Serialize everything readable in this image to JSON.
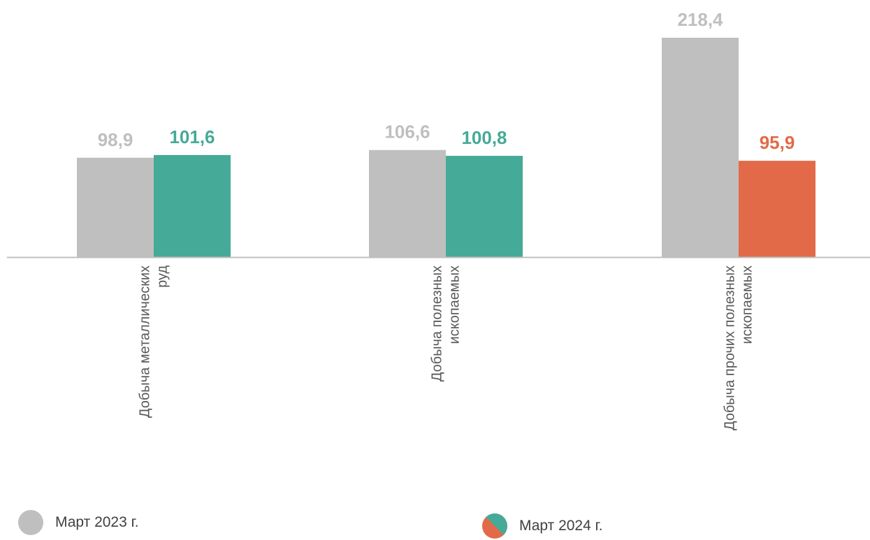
{
  "chart_data": {
    "type": "bar",
    "categories": [
      "Добыча металлических руд",
      "Добыча полезных ископаемых",
      "Добыча прочих полезных ископаемых"
    ],
    "category_label_lines": [
      [
        "Добыча металлических",
        "руд"
      ],
      [
        "Добыча полезных",
        "ископаемых"
      ],
      [
        "Добыча прочих полезных",
        "ископаемых"
      ]
    ],
    "series": [
      {
        "name": "Март 2023 г.",
        "values": [
          98.9,
          106.6,
          218.4
        ],
        "labels": [
          "98,9",
          "106,6",
          "218,4"
        ],
        "colors": [
          "#bfbfbf",
          "#bfbfbf",
          "#bfbfbf"
        ]
      },
      {
        "name": "Март 2024 г.",
        "values": [
          101.6,
          100.8,
          95.9
        ],
        "labels": [
          "101,6",
          "100,8",
          "95,9"
        ],
        "colors": [
          "#45aa97",
          "#45aa97",
          "#e26a48"
        ]
      }
    ],
    "ylim": [
      0,
      230
    ],
    "grid": false,
    "legend_position": "bottom",
    "colors": {
      "march_2023": "#bfbfbf",
      "march_2024_growth": "#45aa97",
      "march_2024_decline": "#e26a48",
      "axis": "#bfbfbf",
      "category_text": "#595959"
    }
  },
  "legend": {
    "items": [
      {
        "label": "Март 2023 г.",
        "icon": "gray-circle-icon"
      },
      {
        "label": "Март 2024 г.",
        "icon": "split-circle-icon"
      }
    ]
  }
}
